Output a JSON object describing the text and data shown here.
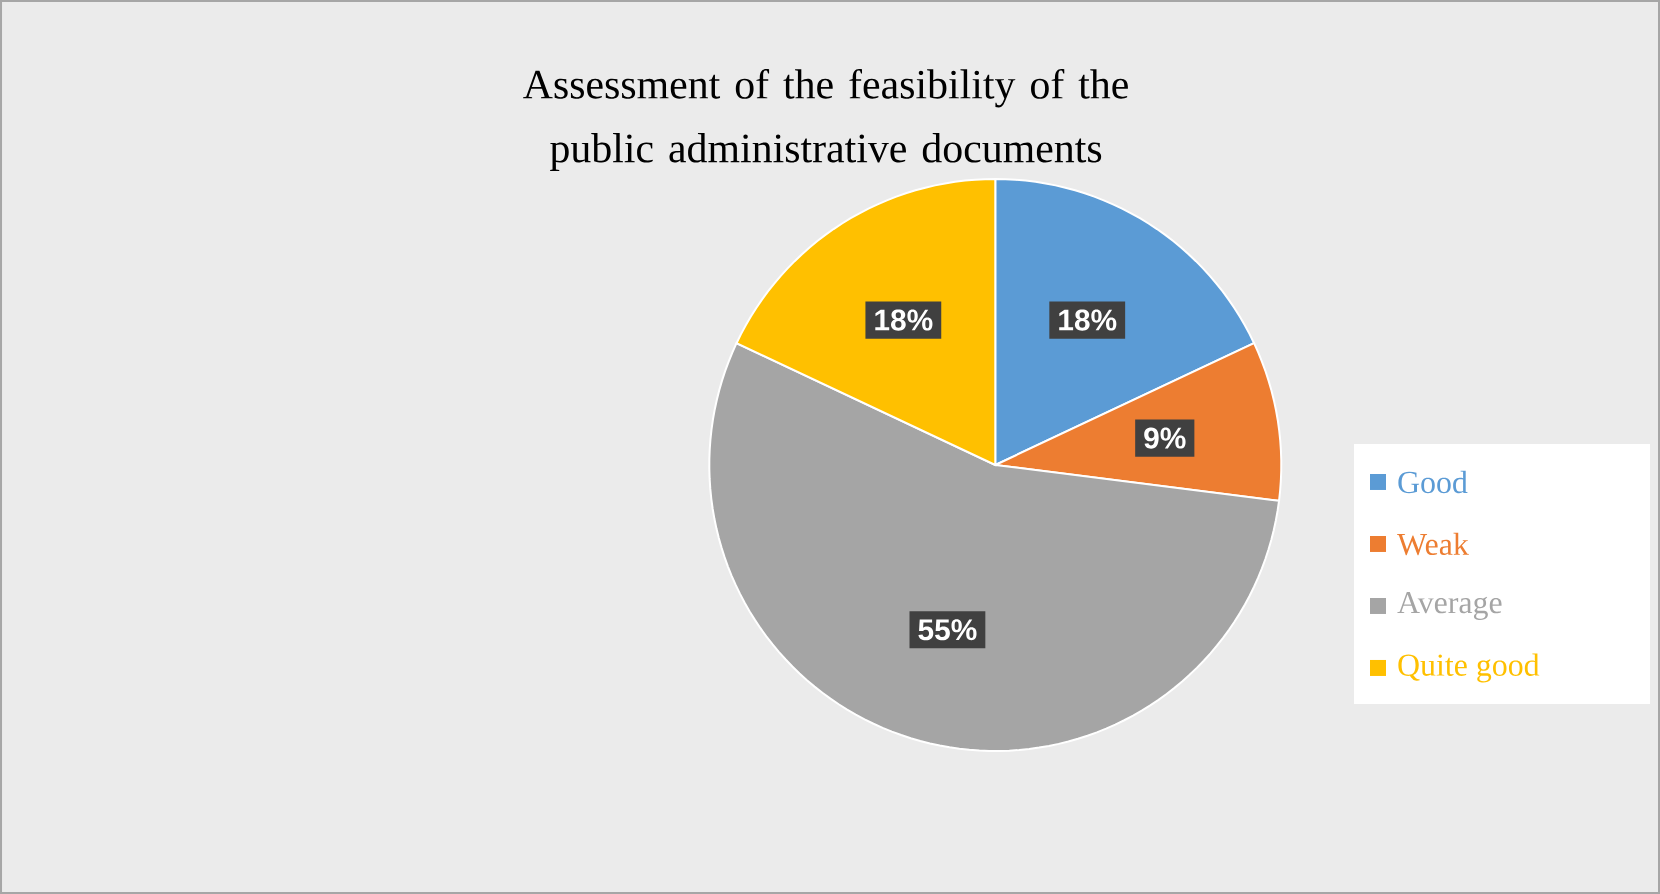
{
  "chart_data": {
    "type": "pie",
    "title": "Assessment of the feasibility of the public administrative documents",
    "categories": [
      "Good",
      "Weak",
      "Average",
      "Quite good"
    ],
    "values": [
      18,
      9,
      55,
      18
    ],
    "value_labels": [
      "18%",
      "9%",
      "55%",
      "18%"
    ],
    "colors": [
      "#5b9bd5",
      "#ed7d31",
      "#a5a5a5",
      "#ffc000"
    ],
    "legend": "right"
  }
}
